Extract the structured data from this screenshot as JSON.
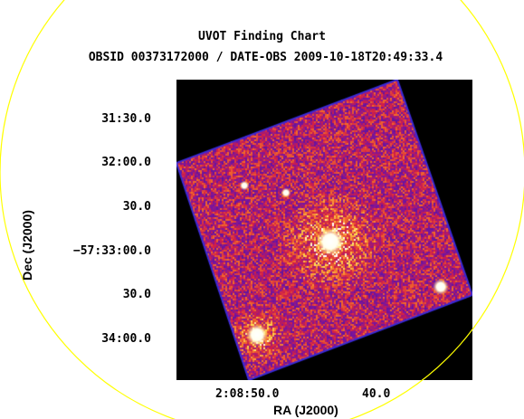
{
  "title": "UVOT Finding Chart",
  "subtitle": "OBSID 00373172000 / DATE-OBS 2009-10-18T20:49:33.4",
  "x_axis": {
    "label": "RA (J2000)",
    "ticks": [
      "2:08:50.0",
      "40.0"
    ]
  },
  "y_axis": {
    "label": "Dec (J2000)",
    "ticks": [
      "31:30.0",
      "32:00.0",
      "30.0",
      "−57:33:00.0",
      "30.0",
      "34:00.0"
    ]
  },
  "colors": {
    "background": "#ffffff",
    "plot_background": "#000000",
    "circle": "#ffff00",
    "frame_edge": "#3a2ad8",
    "colormap_low": "#2a1aa0",
    "colormap_mid": "#d02040",
    "colormap_high": "#ffd040"
  }
}
